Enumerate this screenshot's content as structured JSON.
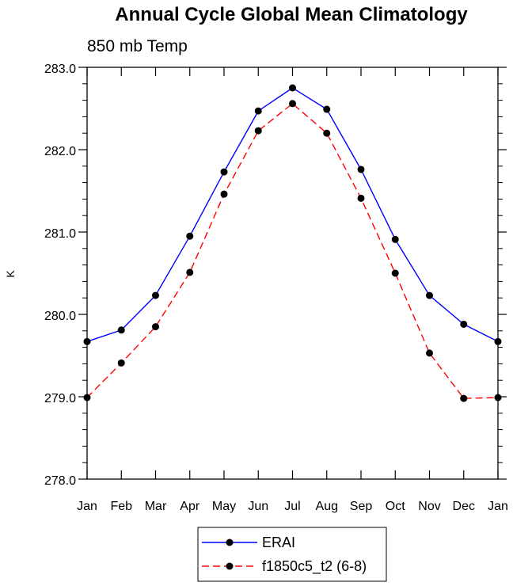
{
  "chart_data": {
    "type": "line",
    "title": "Annual Cycle Global Mean Climatology",
    "subtitle": "850 mb Temp",
    "xlabel": "",
    "ylabel": "K",
    "categories": [
      "Jan",
      "Feb",
      "Mar",
      "Apr",
      "May",
      "Jun",
      "Jul",
      "Aug",
      "Sep",
      "Oct",
      "Nov",
      "Dec",
      "Jan"
    ],
    "ylim": [
      278.0,
      283.0
    ],
    "yticks": [
      "278.0",
      "279.0",
      "280.0",
      "281.0",
      "282.0",
      "283.0"
    ],
    "grid": false,
    "legend_position": "bottom-center",
    "series": [
      {
        "name": "ERAI",
        "color": "#0000ff",
        "line_style": "solid",
        "marker": "filled-circle",
        "values": [
          279.67,
          279.81,
          280.23,
          280.95,
          281.73,
          282.47,
          282.75,
          282.49,
          281.76,
          280.91,
          280.23,
          279.88,
          279.67
        ]
      },
      {
        "name": "f1850c5_t2 (6-8)",
        "color": "#ff0000",
        "line_style": "dashed",
        "marker": "filled-circle",
        "values": [
          278.99,
          279.41,
          279.85,
          280.51,
          281.46,
          282.23,
          282.56,
          282.2,
          281.41,
          280.5,
          279.53,
          278.98,
          278.99
        ]
      }
    ]
  }
}
